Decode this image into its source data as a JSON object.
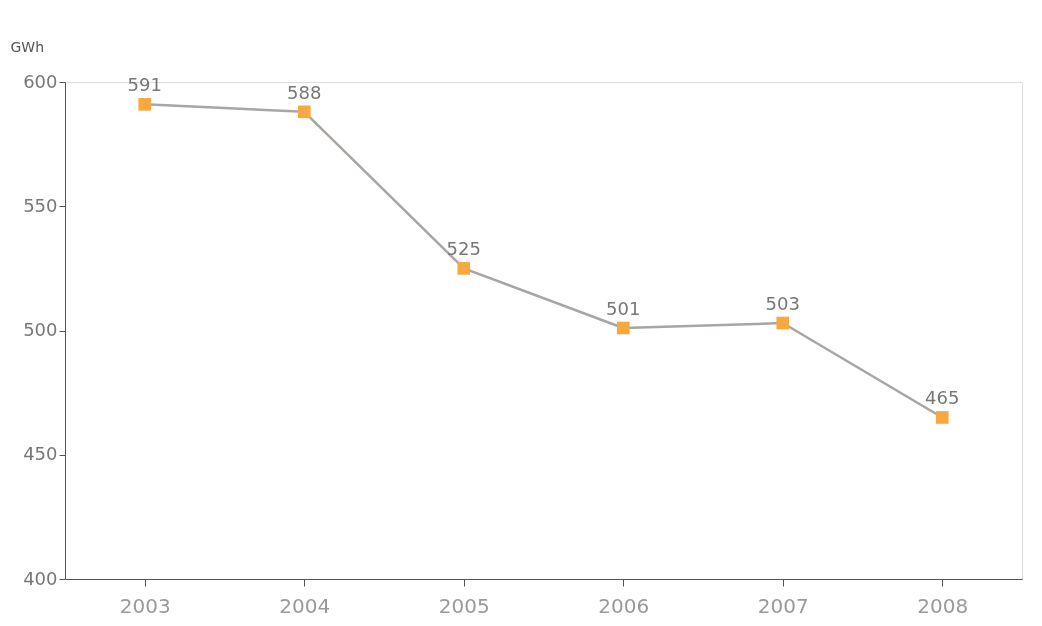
{
  "chart_data": {
    "type": "line",
    "ylabel": "GWh",
    "categories": [
      "2003",
      "2004",
      "2005",
      "2006",
      "2007",
      "2008"
    ],
    "series": [
      {
        "color": "#a9a5a3",
        "colors": [
          "#f7a940",
          "#f7a940",
          "#f7a940",
          "#f7a940",
          "#f7a940",
          "#f7a940"
        ],
        "values": [
          591,
          588,
          525,
          501,
          503,
          465
        ]
      }
    ],
    "marker": "square",
    "line_style": "solid",
    "ylim": [
      400,
      600
    ],
    "yticks": [
      400,
      450,
      500,
      550,
      600
    ],
    "data_labels": true,
    "grid": false
  }
}
